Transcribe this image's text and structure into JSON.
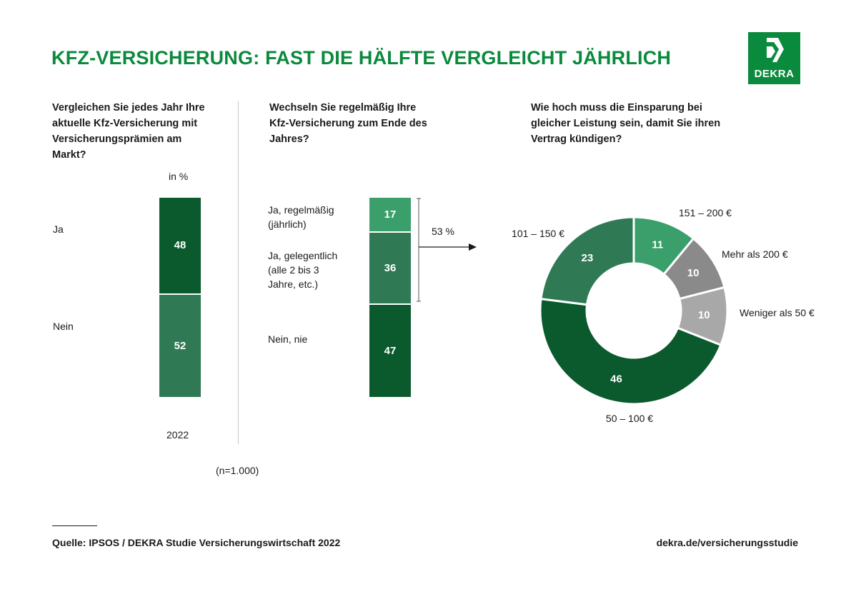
{
  "header": {
    "title": "KFZ-VERSICHERUNG: FAST DIE HÄLFTE VERGLEICHT JÄHRLICH"
  },
  "logo": {
    "text": "DEKRA"
  },
  "colors": {
    "brand": "#0a8a3c",
    "dark": "#0b5a2d",
    "mid": "#2f7a54",
    "light": "#3a9f6a",
    "grey_dark": "#8a8a8a",
    "grey_light": "#a8a8a8"
  },
  "chart_data": [
    {
      "type": "bar",
      "stacked": true,
      "title": "Vergleichen Sie jedes Jahr Ihre aktuelle Kfz-Versicherung mit Versicherungsprämien am Markt?",
      "unit_label": "in %",
      "categories": [
        "2022"
      ],
      "series": [
        {
          "name": "Ja",
          "values": [
            48
          ]
        },
        {
          "name": "Nein",
          "values": [
            52
          ]
        }
      ],
      "note": "(n=1.000)"
    },
    {
      "type": "bar",
      "stacked": true,
      "title": "Wechseln Sie regelmäßig Ihre Kfz-Versicherung zum Ende des Jahres?",
      "series": [
        {
          "name": "Ja, regelmäßig (jährlich)",
          "values": [
            17
          ]
        },
        {
          "name": "Ja, gelegentlich (alle 2 bis 3 Jahre, etc.)",
          "values": [
            36
          ]
        },
        {
          "name": "Nein, nie",
          "values": [
            47
          ]
        }
      ],
      "bracket_label": "53 %"
    },
    {
      "type": "pie",
      "donut": true,
      "title": "Wie hoch muss die Einsparung bei gleicher Leistung sein, damit Sie ihren Vertrag kündigen?",
      "slices": [
        {
          "label": "151 – 200 €",
          "value": 11
        },
        {
          "label": "Mehr als 200 €",
          "value": 10
        },
        {
          "label": "Weniger als 50 €",
          "value": 10
        },
        {
          "label": "50 – 100 €",
          "value": 46
        },
        {
          "label": "101 – 150 €",
          "value": 23
        }
      ]
    }
  ],
  "footer": {
    "source": "Quelle: IPSOS / DEKRA Studie Versicherungswirtschaft 2022",
    "url": "dekra.de/versicherungsstudie"
  }
}
